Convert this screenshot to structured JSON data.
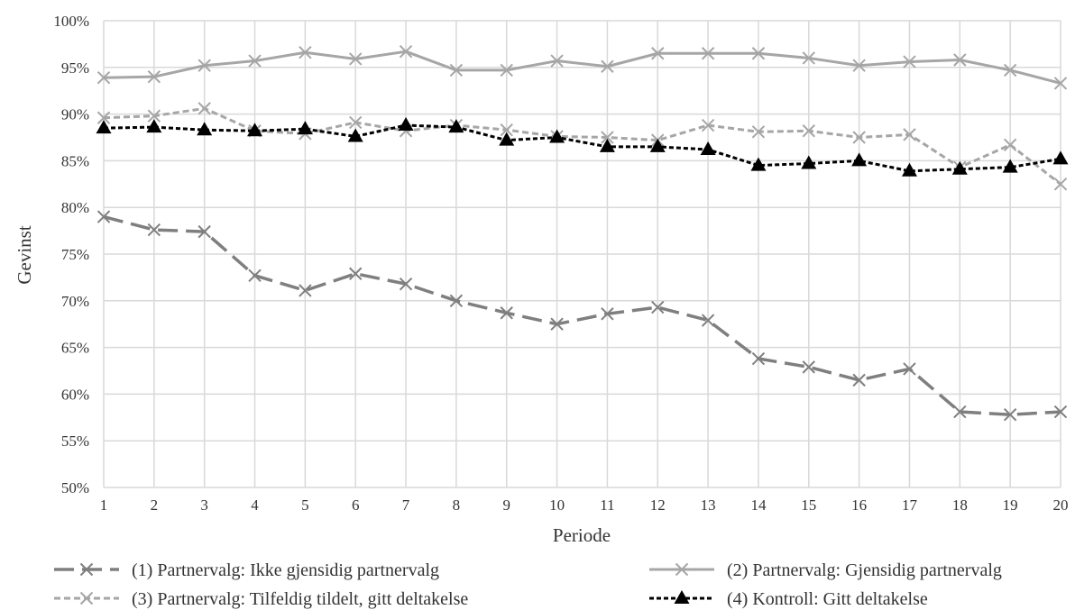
{
  "chart_data": {
    "type": "line",
    "xlabel": "Periode",
    "ylabel": "Gevinst",
    "x": [
      1,
      2,
      3,
      4,
      5,
      6,
      7,
      8,
      9,
      10,
      11,
      12,
      13,
      14,
      15,
      16,
      17,
      18,
      19,
      20
    ],
    "ylim": [
      0.5,
      1.0
    ],
    "ytick_labels": [
      "50%",
      "55%",
      "60%",
      "65%",
      "70%",
      "75%",
      "80%",
      "85%",
      "90%",
      "95%",
      "100%"
    ],
    "grid": true,
    "legend_position": "bottom",
    "series": [
      {
        "name": "(1)  Partnervalg: Ikke gjensidig partnervalg",
        "color": "#7f7f7f",
        "line_style": "long-dash",
        "marker": "x",
        "values": [
          0.79,
          0.776,
          0.774,
          0.727,
          0.711,
          0.729,
          0.718,
          0.7,
          0.687,
          0.675,
          0.686,
          0.693,
          0.679,
          0.638,
          0.629,
          0.615,
          0.627,
          0.581,
          0.578,
          0.581
        ]
      },
      {
        "name": "(2) Partnervalg: Gjensidig partnervalg",
        "color": "#a6a6a6",
        "line_style": "solid",
        "marker": "x",
        "values": [
          0.939,
          0.94,
          0.952,
          0.957,
          0.966,
          0.959,
          0.967,
          0.947,
          0.947,
          0.957,
          0.951,
          0.965,
          0.965,
          0.965,
          0.96,
          0.952,
          0.956,
          0.958,
          0.947,
          0.933
        ]
      },
      {
        "name": "(3)  Partnervalg: Tilfeldig tildelt, gitt deltakelse",
        "color": "#a6a6a6",
        "line_style": "short-dash",
        "marker": "x",
        "values": [
          0.896,
          0.898,
          0.906,
          0.882,
          0.879,
          0.891,
          0.882,
          0.888,
          0.883,
          0.876,
          0.875,
          0.872,
          0.888,
          0.881,
          0.882,
          0.875,
          0.878,
          0.843,
          0.867,
          0.825
        ]
      },
      {
        "name": "(4)  Kontroll: Gitt deltakelse",
        "color": "#000000",
        "line_style": "dotted",
        "marker": "triangle",
        "values": [
          0.885,
          0.886,
          0.883,
          0.882,
          0.884,
          0.876,
          0.888,
          0.886,
          0.872,
          0.875,
          0.865,
          0.865,
          0.862,
          0.845,
          0.847,
          0.85,
          0.839,
          0.841,
          0.843,
          0.852
        ]
      }
    ]
  }
}
